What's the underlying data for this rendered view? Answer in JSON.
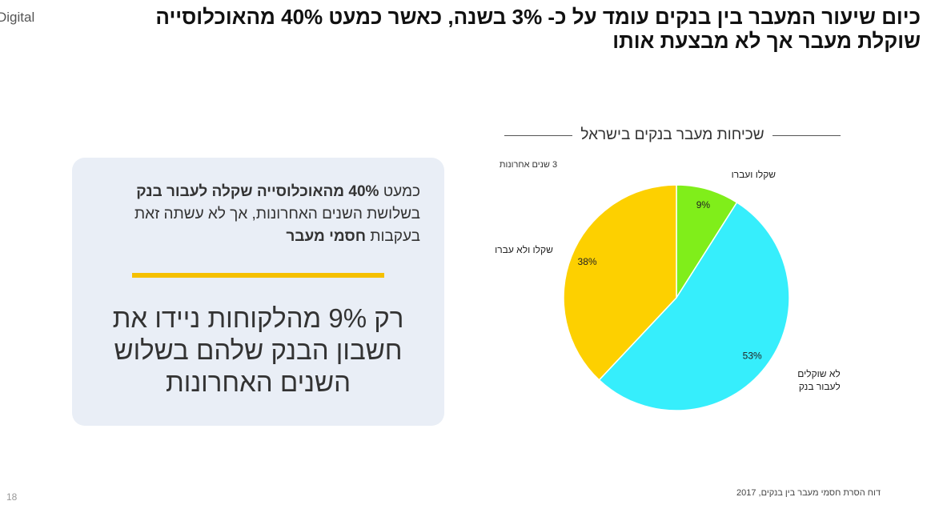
{
  "slide": {
    "logo": "Digital",
    "title": [
      "כיום שיעור המעבר בין בנקים עומד על כ- 3% בשנה, כאשר כמעט 40% מהאוכלוסייה",
      "שוקלת מעבר אך לא מבצעת אותו"
    ],
    "callout": {
      "text": [
        "כמעט",
        "40% מהאוכלוסייה שקלה לעבור בנק",
        "בשלושת השנים האחרונות, אך לא עשתה זאת בעקבות",
        "חסמי מעבר"
      ],
      "highlight": "רק 9% מהלקוחות ניידו את חשבון הבנק שלהם בשלוש השנים האחרונות"
    },
    "page_number": "18",
    "source": "דוח הסרת חסמי מעבר בין בנקים, 2017"
  },
  "chart_data": {
    "type": "pie",
    "title": "שכיחות מעבר בנקים בישראל",
    "note": "3 שנים אחרונות",
    "categories": [
      "שקלו ועברו",
      "לא שוקלים לעבור בנק",
      "שקלו ולא עברו"
    ],
    "values": [
      9,
      53,
      38
    ],
    "value_labels": [
      "9%",
      "53%",
      "38%"
    ],
    "colors": [
      "#80ee1a",
      "#36eefc",
      "#fdd000"
    ]
  }
}
